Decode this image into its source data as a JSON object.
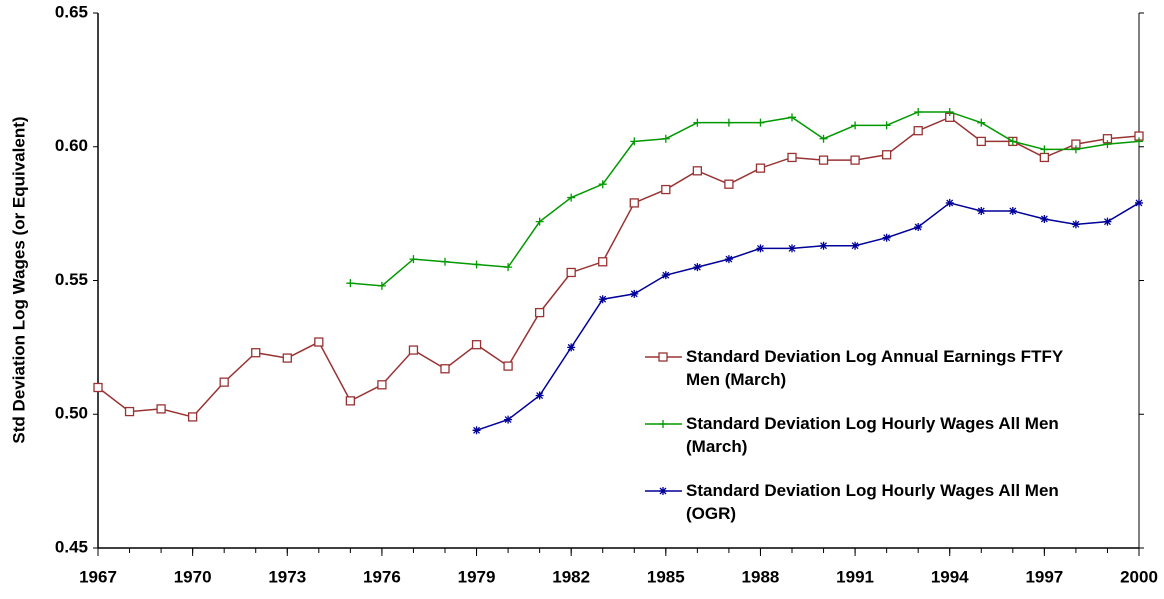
{
  "chart_data": {
    "type": "line",
    "y_label": "Std Deviation Log Wages (or Equivalent)",
    "x": [
      1967,
      1968,
      1969,
      1970,
      1971,
      1972,
      1973,
      1974,
      1975,
      1976,
      1977,
      1978,
      1979,
      1980,
      1981,
      1982,
      1983,
      1984,
      1985,
      1986,
      1987,
      1988,
      1989,
      1990,
      1991,
      1992,
      1993,
      1994,
      1995,
      1996,
      1997,
      1998,
      1999,
      2000
    ],
    "xlim": [
      1967,
      2000
    ],
    "xticks": [
      1967,
      1970,
      1973,
      1976,
      1979,
      1982,
      1985,
      1988,
      1991,
      1994,
      1997,
      2000
    ],
    "ylim": [
      0.45,
      0.65
    ],
    "yticks": [
      0.45,
      {
        "value": 0.5,
        "label": "0.50"
      },
      0.55,
      {
        "value": 0.6,
        "label": "0.60"
      },
      0.65
    ],
    "legend": "right",
    "series": [
      {
        "name": "Standard Deviation Log Annual Earnings FTFY Men (March)",
        "color": "#993333",
        "marker": "square",
        "values": [
          0.51,
          0.501,
          0.502,
          0.499,
          0.512,
          0.523,
          0.521,
          0.527,
          0.505,
          0.511,
          0.524,
          0.517,
          0.526,
          0.518,
          0.538,
          0.553,
          0.557,
          0.579,
          0.584,
          0.591,
          0.586,
          0.592,
          0.596,
          0.595,
          0.595,
          0.597,
          0.606,
          0.611,
          0.602,
          0.602,
          0.596,
          0.601,
          0.603,
          0.604
        ]
      },
      {
        "name": "Standard Deviation Log Hourly Wages All Men (March)",
        "color": "#009900",
        "marker": "plus",
        "values": [
          null,
          null,
          null,
          null,
          null,
          null,
          null,
          null,
          0.549,
          0.548,
          0.558,
          0.557,
          0.556,
          0.555,
          0.572,
          0.581,
          0.586,
          0.602,
          0.603,
          0.609,
          0.609,
          0.609,
          0.611,
          0.603,
          0.608,
          0.608,
          0.613,
          0.613,
          0.609,
          0.602,
          0.599,
          0.599,
          0.601,
          0.602
        ]
      },
      {
        "name": "Standard Deviation Log Hourly Wages All Men (OGR)",
        "color": "#000099",
        "marker": "star",
        "values": [
          null,
          null,
          null,
          null,
          null,
          null,
          null,
          null,
          null,
          null,
          null,
          null,
          0.494,
          0.498,
          0.507,
          0.525,
          0.543,
          0.545,
          0.552,
          0.555,
          0.558,
          0.562,
          0.562,
          0.563,
          0.563,
          0.566,
          0.57,
          0.579,
          0.576,
          0.576,
          0.573,
          0.571,
          0.572,
          0.579
        ]
      }
    ]
  }
}
